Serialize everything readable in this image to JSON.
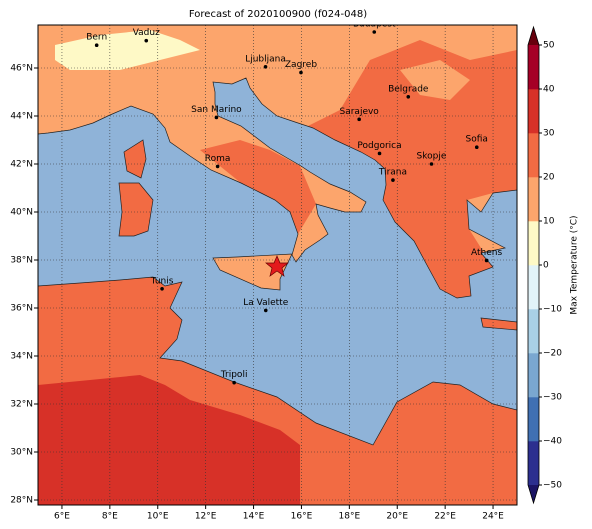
{
  "title": "Forecast of 2020100900 (f024-048)",
  "cities": [
    "Bern",
    "Vaduz",
    "Budapest",
    "Ljubljana",
    "Zagreb",
    "Belgrade",
    "San Marino",
    "Sarajevo",
    "Sofia",
    "Roma",
    "Podgorica",
    "Skopje",
    "Tirana",
    "Athens",
    "Tunis",
    "La Valette",
    "Tripoli"
  ],
  "x_tick_labels": [
    "6°E",
    "8°E",
    "10°E",
    "12°E",
    "14°E",
    "16°E",
    "18°E",
    "20°E",
    "22°E",
    "24°E"
  ],
  "y_tick_labels": [
    "28°N",
    "30°N",
    "32°N",
    "34°N",
    "36°N",
    "38°N",
    "40°N",
    "42°N",
    "44°N",
    "46°N"
  ],
  "colorbar": {
    "label": "Max Temperature (°C)",
    "tick_labels": [
      "−50",
      "−40",
      "−30",
      "−20",
      "−10",
      "0",
      "10",
      "20",
      "30",
      "40",
      "50"
    ],
    "colors": [
      "#2c2f8f",
      "#4070b3",
      "#7aa7d0",
      "#a9d0e6",
      "#e2f3f8",
      "#fef9c6",
      "#fca56c",
      "#f26b43",
      "#d73128",
      "#a50026"
    ],
    "under_color": "#1b1464",
    "over_color": "#67000d"
  }
}
